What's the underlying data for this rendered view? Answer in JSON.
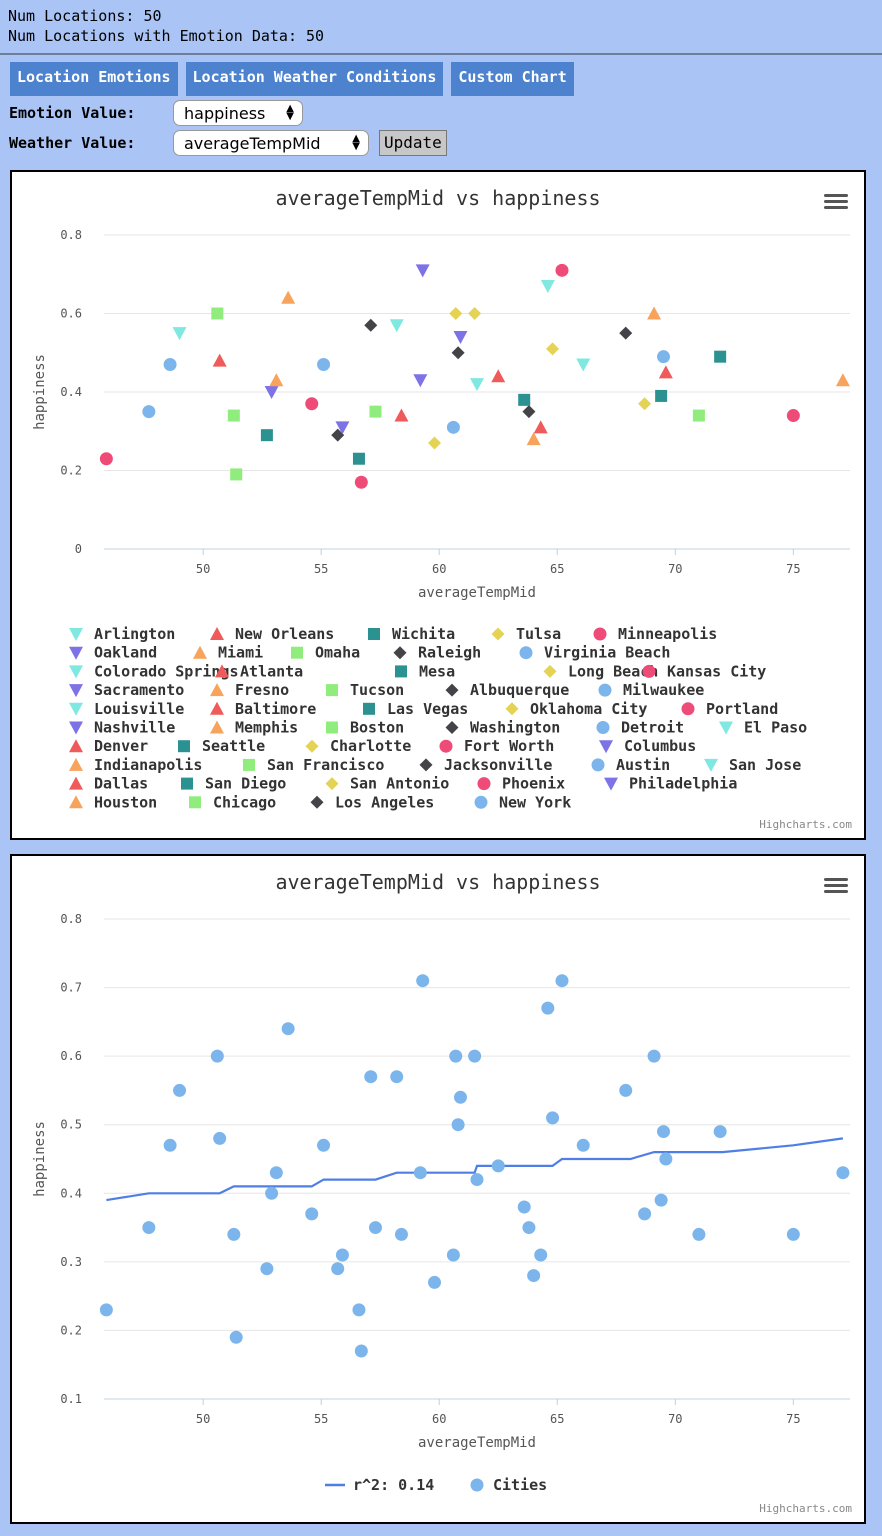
{
  "header": {
    "num_locations": "Num Locations: 50",
    "num_emotion": "Num Locations with Emotion Data: 50"
  },
  "tabs": [
    {
      "label": "Location Emotions"
    },
    {
      "label": "Location Weather Conditions"
    },
    {
      "label": "Custom Chart"
    }
  ],
  "controls": {
    "emotion_label": "Emotion Value:",
    "emotion_value": "happiness",
    "weather_label": "Weather Value:",
    "weather_value": "averageTempMid",
    "update_label": "Update"
  },
  "credits": "Highcharts.com",
  "colors": {
    "cyan": "#7fe8e0",
    "red": "#ef5a5a",
    "teal": "#2b9191",
    "yellow": "#e4d354",
    "pink": "#ef4b78",
    "purple": "#7d72e6",
    "orange": "#f7a35c",
    "green": "#90ed7d",
    "black": "#434348",
    "blue": "#7cb5ec",
    "line": "#4f7fe6"
  },
  "chart_data": [
    {
      "type": "scatter",
      "title": "averageTempMid vs happiness",
      "xlabel": "averageTempMid",
      "ylabel": "happiness",
      "xlim": [
        45.8,
        77.4
      ],
      "ylim": [
        0,
        0.8
      ],
      "xticks": [
        50,
        55,
        60,
        65,
        70,
        75
      ],
      "yticks": [
        0,
        0.2,
        0.4,
        0.6,
        0.8
      ],
      "grid": true,
      "legend": "bottom",
      "series": [
        {
          "name": "Arlington",
          "color": "cyan",
          "symbol": "tri-down",
          "x": 49.0,
          "y": 0.55
        },
        {
          "name": "New Orleans",
          "color": "red",
          "symbol": "triangle",
          "x": 50.7,
          "y": 0.48
        },
        {
          "name": "Wichita",
          "color": "teal",
          "symbol": "square",
          "x": 52.7,
          "y": 0.29
        },
        {
          "name": "Tulsa",
          "color": "yellow",
          "symbol": "diamond",
          "x": 59.8,
          "y": 0.27
        },
        {
          "name": "Minneapolis",
          "color": "pink",
          "symbol": "circle",
          "x": 45.9,
          "y": 0.23
        },
        {
          "name": "Oakland",
          "color": "purple",
          "symbol": "tri-down",
          "x": 59.2,
          "y": 0.43
        },
        {
          "name": "Miami",
          "color": "orange",
          "symbol": "triangle",
          "x": 64.0,
          "y": 0.28
        },
        {
          "name": "Omaha",
          "color": "green",
          "symbol": "square",
          "x": 51.4,
          "y": 0.19
        },
        {
          "name": "Raleigh",
          "color": "black",
          "symbol": "diamond",
          "x": 63.8,
          "y": 0.35
        },
        {
          "name": "Virginia Beach",
          "color": "blue",
          "symbol": "circle",
          "x": 48.6,
          "y": 0.47
        },
        {
          "name": "Colorado Springs",
          "color": "cyan",
          "symbol": "tri-down",
          "x": 66.1,
          "y": 0.47
        },
        {
          "name": "Atlanta",
          "color": "red",
          "symbol": "triangle",
          "x": 64.3,
          "y": 0.31
        },
        {
          "name": "Mesa",
          "color": "teal",
          "symbol": "square",
          "x": 63.6,
          "y": 0.38
        },
        {
          "name": "Long Beach",
          "color": "yellow",
          "symbol": "diamond",
          "x": 61.5,
          "y": 0.6
        },
        {
          "name": "Kansas City",
          "color": "pink",
          "symbol": "circle",
          "x": 54.6,
          "y": 0.37
        },
        {
          "name": "Sacramento",
          "color": "purple",
          "symbol": "tri-down",
          "x": 60.9,
          "y": 0.54
        },
        {
          "name": "Fresno",
          "color": "orange",
          "symbol": "triangle",
          "x": 53.6,
          "y": 0.64
        },
        {
          "name": "Tucson",
          "color": "green",
          "symbol": "square",
          "x": 71.0,
          "y": 0.34
        },
        {
          "name": "Albuquerque",
          "color": "black",
          "symbol": "diamond",
          "x": 55.7,
          "y": 0.29
        },
        {
          "name": "Milwaukee",
          "color": "blue",
          "symbol": "circle",
          "x": 47.7,
          "y": 0.35
        },
        {
          "name": "Louisville",
          "color": "cyan",
          "symbol": "tri-down",
          "x": 58.2,
          "y": 0.57
        },
        {
          "name": "Baltimore",
          "color": "red",
          "symbol": "triangle",
          "x": 58.4,
          "y": 0.34
        },
        {
          "name": "Las Vegas",
          "color": "teal",
          "symbol": "square",
          "x": 71.9,
          "y": 0.49
        },
        {
          "name": "Oklahoma City",
          "color": "yellow",
          "symbol": "diamond",
          "x": 60.7,
          "y": 0.6
        },
        {
          "name": "Portland",
          "color": "pink",
          "symbol": "circle",
          "x": 56.7,
          "y": 0.17
        },
        {
          "name": "Nashville",
          "color": "purple",
          "symbol": "tri-down",
          "x": 59.3,
          "y": 0.71
        },
        {
          "name": "Memphis",
          "color": "orange",
          "symbol": "triangle",
          "x": 69.1,
          "y": 0.6
        },
        {
          "name": "Boston",
          "color": "green",
          "symbol": "square",
          "x": 51.3,
          "y": 0.34
        },
        {
          "name": "Washington",
          "color": "black",
          "symbol": "diamond",
          "x": 57.1,
          "y": 0.57
        },
        {
          "name": "Detroit",
          "color": "blue",
          "symbol": "circle",
          "x": 60.6,
          "y": 0.31
        },
        {
          "name": "El Paso",
          "color": "cyan",
          "symbol": "tri-down",
          "x": 64.6,
          "y": 0.67
        },
        {
          "name": "Denver",
          "color": "red",
          "symbol": "triangle",
          "x": 62.5,
          "y": 0.44
        },
        {
          "name": "Seattle",
          "color": "teal",
          "symbol": "square",
          "x": 56.6,
          "y": 0.23
        },
        {
          "name": "Charlotte",
          "color": "yellow",
          "symbol": "diamond",
          "x": 64.8,
          "y": 0.51
        },
        {
          "name": "Fort Worth",
          "color": "pink",
          "symbol": "circle",
          "x": 65.2,
          "y": 0.71
        },
        {
          "name": "Columbus",
          "color": "purple",
          "symbol": "tri-down",
          "x": 52.9,
          "y": 0.4
        },
        {
          "name": "Indianapolis",
          "color": "orange",
          "symbol": "triangle",
          "x": 53.1,
          "y": 0.43
        },
        {
          "name": "San Francisco",
          "color": "green",
          "symbol": "square",
          "x": 57.3,
          "y": 0.35
        },
        {
          "name": "Jacksonville",
          "color": "black",
          "symbol": "diamond",
          "x": 67.9,
          "y": 0.55
        },
        {
          "name": "Austin",
          "color": "blue",
          "symbol": "circle",
          "x": 69.5,
          "y": 0.49
        },
        {
          "name": "San Jose",
          "color": "cyan",
          "symbol": "tri-down",
          "x": 61.6,
          "y": 0.42
        },
        {
          "name": "Dallas",
          "color": "red",
          "symbol": "triangle",
          "x": 69.6,
          "y": 0.45
        },
        {
          "name": "San Diego",
          "color": "teal",
          "symbol": "square",
          "x": 69.4,
          "y": 0.39
        },
        {
          "name": "San Antonio",
          "color": "yellow",
          "symbol": "diamond",
          "x": 68.7,
          "y": 0.37
        },
        {
          "name": "Phoenix",
          "color": "pink",
          "symbol": "circle",
          "x": 75.0,
          "y": 0.34
        },
        {
          "name": "Philadelphia",
          "color": "purple",
          "symbol": "tri-down",
          "x": 55.9,
          "y": 0.31
        },
        {
          "name": "Houston",
          "color": "orange",
          "symbol": "triangle",
          "x": 77.1,
          "y": 0.43
        },
        {
          "name": "Chicago",
          "color": "green",
          "symbol": "square",
          "x": 50.6,
          "y": 0.6
        },
        {
          "name": "Los Angeles",
          "color": "black",
          "symbol": "diamond",
          "x": 60.8,
          "y": 0.5
        },
        {
          "name": "New York",
          "color": "blue",
          "symbol": "circle",
          "x": 55.1,
          "y": 0.47
        }
      ]
    },
    {
      "type": "scatter",
      "title": "averageTempMid vs happiness",
      "xlabel": "averageTempMid",
      "ylabel": "happiness",
      "xlim": [
        45.8,
        77.4
      ],
      "ylim": [
        0.1,
        0.8
      ],
      "xticks": [
        50,
        55,
        60,
        65,
        70,
        75
      ],
      "yticks": [
        0.1,
        0.2,
        0.3,
        0.4,
        0.5,
        0.6,
        0.7,
        0.8
      ],
      "grid": true,
      "legend": "bottom",
      "series": [
        {
          "name": "r^2: 0.14",
          "type": "line",
          "color": "line",
          "x": [
            45.9,
            47.7,
            50.7,
            51.3,
            54.6,
            55.1,
            57.3,
            58.2,
            61.5,
            61.6,
            64.8,
            65.2,
            68.1,
            69.1,
            72.0,
            75.0,
            77.1
          ],
          "y": [
            0.39,
            0.4,
            0.4,
            0.41,
            0.41,
            0.42,
            0.42,
            0.43,
            0.43,
            0.44,
            0.44,
            0.45,
            0.45,
            0.46,
            0.46,
            0.47,
            0.48
          ]
        },
        {
          "name": "Cities",
          "type": "scatter",
          "color": "blue",
          "x": [
            49.0,
            50.7,
            52.7,
            59.8,
            45.9,
            59.2,
            64.0,
            51.4,
            63.8,
            48.6,
            66.1,
            64.3,
            63.6,
            61.5,
            54.6,
            60.9,
            53.6,
            71.0,
            55.7,
            47.7,
            58.2,
            58.4,
            71.9,
            60.7,
            56.7,
            59.3,
            69.1,
            51.3,
            57.1,
            60.6,
            64.6,
            62.5,
            56.6,
            64.8,
            65.2,
            52.9,
            53.1,
            57.3,
            67.9,
            69.5,
            61.6,
            69.6,
            69.4,
            68.7,
            75.0,
            55.9,
            77.1,
            50.6,
            60.8,
            55.1
          ],
          "y": [
            0.55,
            0.48,
            0.29,
            0.27,
            0.23,
            0.43,
            0.28,
            0.19,
            0.35,
            0.47,
            0.47,
            0.31,
            0.38,
            0.6,
            0.37,
            0.54,
            0.64,
            0.34,
            0.29,
            0.35,
            0.57,
            0.34,
            0.49,
            0.6,
            0.17,
            0.71,
            0.6,
            0.34,
            0.57,
            0.31,
            0.67,
            0.44,
            0.23,
            0.51,
            0.71,
            0.4,
            0.43,
            0.35,
            0.55,
            0.49,
            0.42,
            0.45,
            0.39,
            0.37,
            0.34,
            0.31,
            0.43,
            0.6,
            0.5,
            0.47
          ]
        }
      ]
    }
  ]
}
